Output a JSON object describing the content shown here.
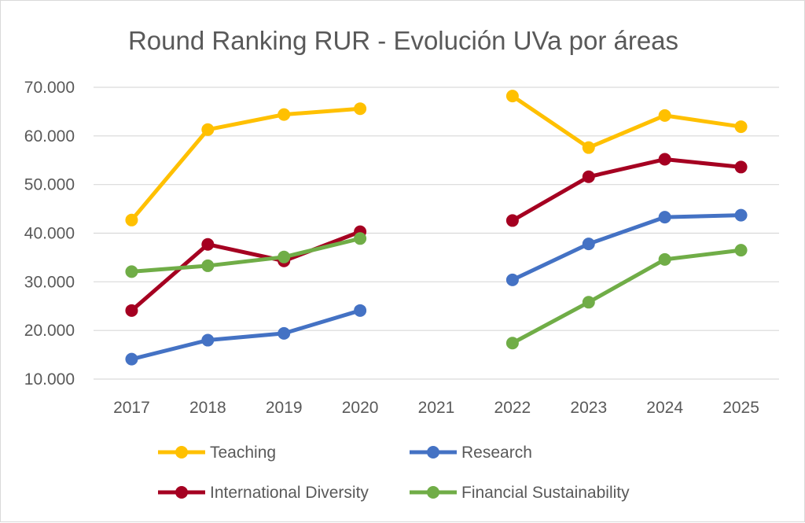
{
  "chart_data": {
    "type": "line",
    "title": "Round Ranking RUR - Evolución UVa por áreas",
    "xlabel": "",
    "ylabel": "",
    "categories": [
      "2017",
      "2018",
      "2019",
      "2020",
      "2021",
      "2022",
      "2023",
      "2024",
      "2025"
    ],
    "y_ticks": [
      "10.000",
      "20.000",
      "30.000",
      "40.000",
      "50.000",
      "60.000",
      "70.000"
    ],
    "ylim": [
      10,
      70
    ],
    "grid": true,
    "legend_position": "bottom",
    "series": [
      {
        "name": "Teaching",
        "color": "#FFC000",
        "values": [
          42.7,
          61.3,
          64.4,
          65.6,
          null,
          68.2,
          57.6,
          64.2,
          61.9
        ]
      },
      {
        "name": "Research",
        "color": "#4472C4",
        "values": [
          14.1,
          18.0,
          19.4,
          24.1,
          null,
          30.4,
          37.8,
          43.3,
          43.7
        ]
      },
      {
        "name": "International Diversity",
        "color": "#A50021",
        "values": [
          24.1,
          37.7,
          34.3,
          40.3,
          null,
          42.6,
          51.6,
          55.2,
          53.6
        ]
      },
      {
        "name": "Financial Sustainability",
        "color": "#70AD47",
        "values": [
          32.1,
          33.3,
          35.1,
          38.9,
          null,
          17.4,
          25.8,
          34.6,
          36.5
        ]
      }
    ]
  }
}
